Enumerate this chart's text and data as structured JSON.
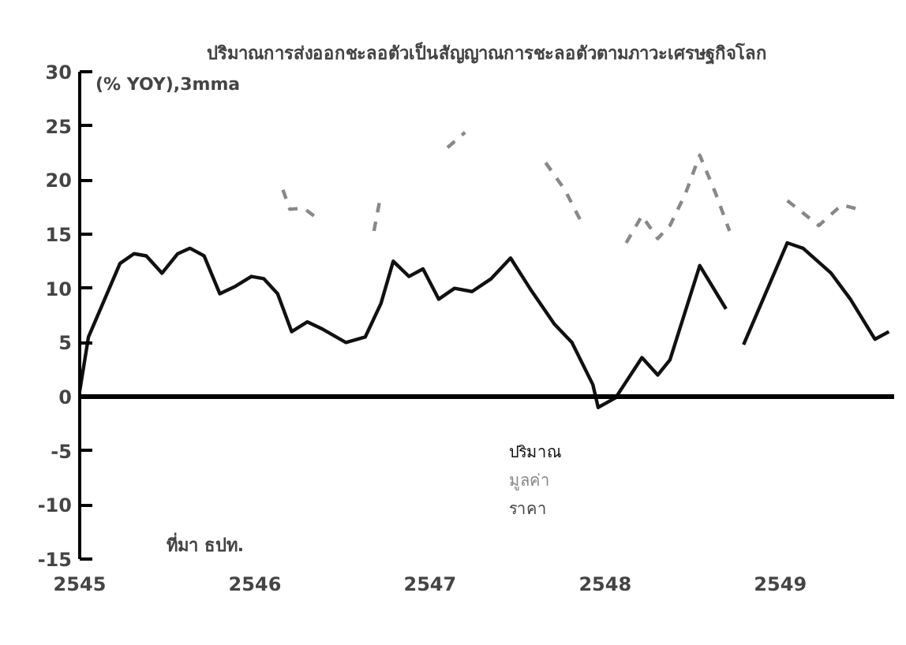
{
  "chart_data": {
    "type": "line",
    "title": "ปริมาณการส่งออกชะลอตัวเป็นสัญญาณการชะลอตัวตามภาวะเศรษฐกิจโลก",
    "ylabel": "(% YOY),3mma",
    "xlim": [
      2545,
      2549.65
    ],
    "xticks": [
      2545,
      2546,
      2547,
      2548,
      2549
    ],
    "ylim": [
      -15,
      30
    ],
    "yticks": [
      -15,
      -10,
      -5,
      0,
      5,
      10,
      15,
      20,
      25,
      30
    ],
    "grid": false,
    "legend": "bottom",
    "marker": "none",
    "ref_lines": [
      {
        "axis": "y",
        "value": 0,
        "color": "#000000",
        "line_style": "solid"
      }
    ],
    "annotations": [
      "ราคา",
      "ที่มา ธปท."
    ],
    "series": [
      {
        "name": "ปริมาณ",
        "color": "#111111",
        "line_style": "solid",
        "x": [
          2545.0,
          2545.05,
          2545.23,
          2545.31,
          2545.38,
          2545.47,
          2545.56,
          2545.63,
          2545.71,
          2545.8,
          2545.89,
          2545.98,
          2546.05,
          2546.13,
          2546.21,
          2546.3,
          2546.39,
          2546.52,
          2546.63,
          2546.72,
          2546.79,
          2546.88,
          2546.96,
          2547.05,
          2547.14,
          2547.24,
          2547.35,
          2547.46,
          2547.57,
          2547.71,
          2547.81,
          2547.93,
          2547.96,
          2548.06,
          2548.21,
          2548.3,
          2548.37,
          2548.54,
          2548.69,
          2548.72,
          2548.79,
          2549.04,
          2549.13,
          2549.29,
          2549.4,
          2549.54,
          2549.62
        ],
        "values": [
          0.5,
          5.5,
          12.3,
          13.2,
          13.0,
          11.4,
          13.2,
          13.7,
          13.0,
          9.5,
          10.2,
          11.1,
          10.9,
          9.5,
          6.0,
          6.9,
          6.2,
          5.0,
          5.5,
          8.6,
          12.5,
          11.1,
          11.8,
          9.0,
          10.0,
          9.7,
          10.9,
          12.8,
          10.0,
          6.7,
          5.0,
          1.1,
          -1.0,
          -0.1,
          3.6,
          2.0,
          3.4,
          12.1,
          8.1,
          null,
          4.8,
          14.2,
          13.7,
          11.4,
          9.0,
          5.3,
          6.0
        ]
      },
      {
        "name": "มูลค่า",
        "color": "#888888",
        "line_style": "dashed",
        "x": [
          2546.16,
          2546.2,
          2546.28,
          2546.37,
          2546.5,
          2546.68,
          2546.72,
          2547.0,
          2547.1,
          2547.2,
          2547.4,
          2547.66,
          2547.77,
          2547.88,
          2548.0,
          2548.12,
          2548.21,
          2548.3,
          2548.37,
          2548.46,
          2548.54,
          2548.63,
          2548.71,
          2548.9,
          2549.04,
          2549.22,
          2549.35,
          2549.45
        ],
        "values": [
          19.1,
          17.3,
          17.4,
          16.3,
          null,
          15.3,
          18.7,
          null,
          23.0,
          24.4,
          null,
          21.6,
          19.1,
          15.6,
          null,
          14.2,
          16.7,
          14.6,
          15.8,
          18.8,
          22.3,
          18.8,
          15.3,
          null,
          18.1,
          15.8,
          17.7,
          17.3
        ]
      }
    ]
  }
}
